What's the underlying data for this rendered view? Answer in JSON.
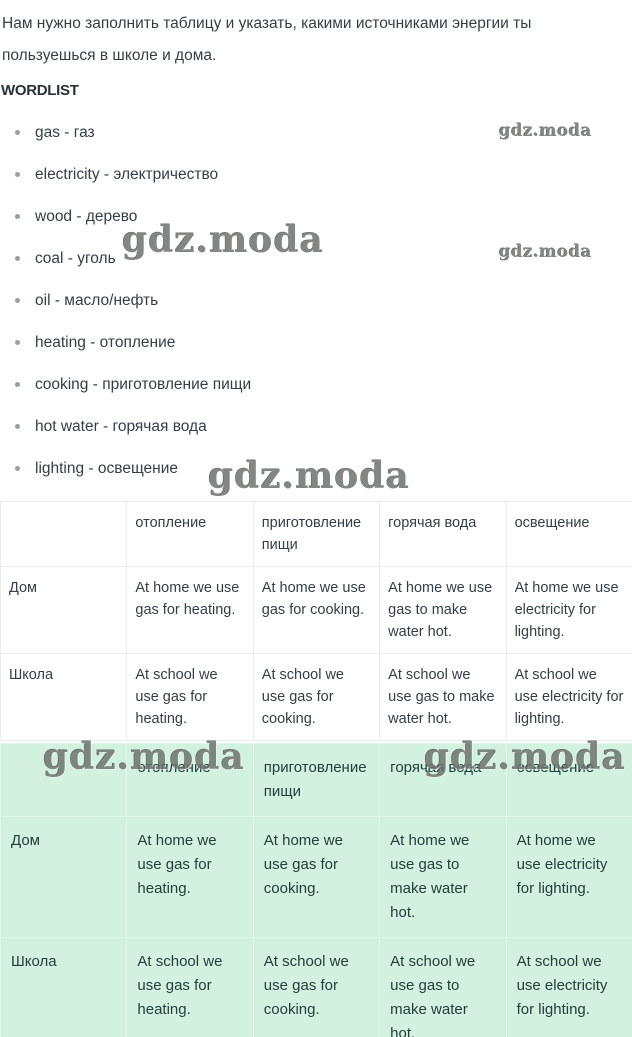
{
  "page": {
    "intro": "Нам нужно заполнить таблицу и указать, какими источниками энергии ты пользуешься в школе и дома.",
    "wordlist_title": "WORDLIST"
  },
  "wordlist": {
    "items": [
      "gas - газ",
      "electricity - электричество",
      "wood - дерево",
      "coal - уголь",
      "oil - масло/нефть",
      "heating - отопление",
      "cooking - приготовление пищи",
      "hot water - горячая вода",
      "lighting - освещение"
    ]
  },
  "watermark": {
    "text": "gdz.moda"
  },
  "table_white": {
    "headers": [
      "",
      "отопление",
      "приготовление пищи",
      "горячая вода",
      "освещение"
    ],
    "rows": [
      {
        "label": "Дом",
        "cells": [
          "At home we use gas for heating.",
          "At home we use gas for cooking.",
          "At home we use gas to make water hot.",
          "At home we use electricity for lighting."
        ]
      },
      {
        "label": "Школа",
        "cells": [
          "At school we use gas for heating.",
          "At school we use gas for cooking.",
          "At school we use gas to make water hot.",
          "At school we use electricity for lighting."
        ]
      }
    ]
  },
  "table_green": {
    "headers": [
      "",
      "отопление",
      "приготовление пищи",
      "горячая вода",
      "освещение"
    ],
    "rows": [
      {
        "label": "Дом",
        "cells": [
          "At home we use gas for heating.",
          "At home we use gas for cooking.",
          "At home we use gas to make water hot.",
          "At home we use electricity for lighting."
        ]
      },
      {
        "label": "Школа",
        "cells": [
          "At school we use gas for heating.",
          "At school we use gas for cooking.",
          "At school we use gas to make water hot.",
          "At school we use electricity for lighting."
        ]
      }
    ]
  },
  "colors": {
    "text": "#333e48",
    "green_bg": "#d2f1e0",
    "green_text": "#20413a",
    "table_border": "#e9ebec",
    "green_border": "#e2f7ec",
    "watermark": "#6e736e",
    "bullet": "#979ea5"
  }
}
